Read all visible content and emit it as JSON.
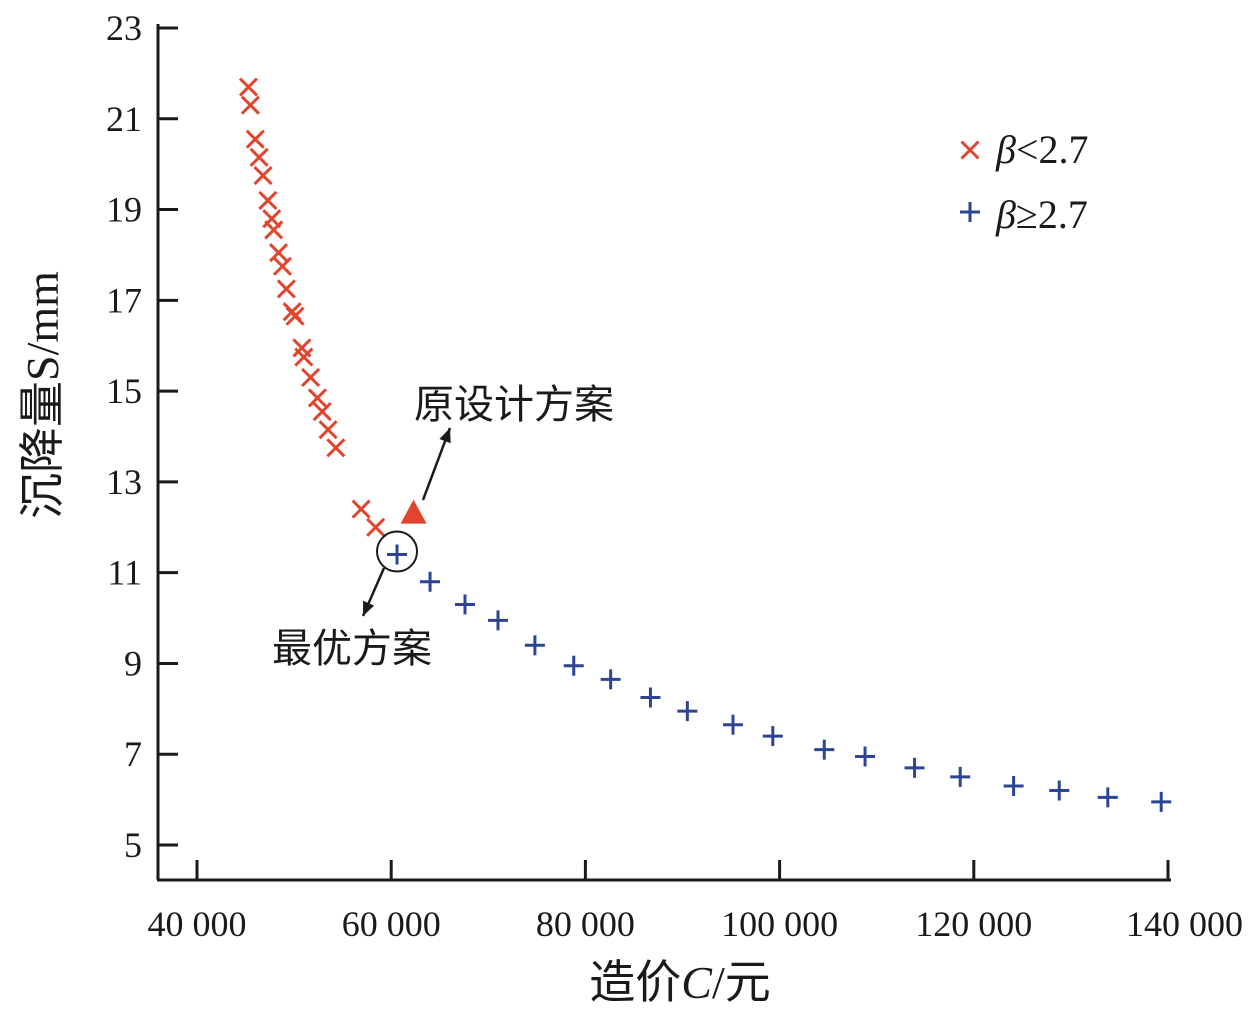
{
  "chart_data": {
    "type": "scatter",
    "xlabel": {
      "main": "造价",
      "var": "C",
      "unit": "/元"
    },
    "ylabel": {
      "main": "沉降量",
      "var": "S",
      "unit": "/mm"
    },
    "xlim": [
      40000,
      140000
    ],
    "ylim": [
      5,
      23
    ],
    "xticks": [
      40000,
      60000,
      80000,
      100000,
      120000,
      140000
    ],
    "xtick_labels": [
      "40 000",
      "60 000",
      "80 000",
      "100 000",
      "120 000",
      "140 000"
    ],
    "yticks": [
      5,
      7,
      9,
      11,
      13,
      15,
      17,
      19,
      21,
      23
    ],
    "ytick_labels": [
      "5",
      "7",
      "9",
      "11",
      "13",
      "15",
      "17",
      "19",
      "21",
      "23"
    ],
    "series": [
      {
        "name": "β<2.7",
        "legend_var": "β",
        "legend_rest": "<2.7",
        "marker": "x",
        "color": "#e2452e",
        "points": [
          [
            45300,
            21.7
          ],
          [
            45500,
            21.3
          ],
          [
            46000,
            20.55
          ],
          [
            46400,
            20.15
          ],
          [
            46800,
            19.75
          ],
          [
            47300,
            19.2
          ],
          [
            47700,
            18.8
          ],
          [
            47900,
            18.55
          ],
          [
            48400,
            18.05
          ],
          [
            48800,
            17.75
          ],
          [
            49200,
            17.25
          ],
          [
            49800,
            16.75
          ],
          [
            50100,
            16.65
          ],
          [
            50800,
            15.95
          ],
          [
            51000,
            15.75
          ],
          [
            51700,
            15.3
          ],
          [
            52400,
            14.85
          ],
          [
            52900,
            14.55
          ],
          [
            53500,
            14.15
          ],
          [
            54300,
            13.75
          ],
          [
            56900,
            12.4
          ],
          [
            58400,
            12.0
          ]
        ]
      },
      {
        "name": "β≥2.7",
        "legend_var": "β",
        "legend_rest": "≥2.7",
        "marker": "+",
        "color": "#2b4593",
        "points": [
          [
            60600,
            11.4
          ],
          [
            64000,
            10.8
          ],
          [
            67600,
            10.3
          ],
          [
            71000,
            9.95
          ],
          [
            74800,
            9.4
          ],
          [
            78800,
            8.95
          ],
          [
            82600,
            8.65
          ],
          [
            86700,
            8.25
          ],
          [
            90500,
            7.95
          ],
          [
            95200,
            7.65
          ],
          [
            99300,
            7.4
          ],
          [
            104600,
            7.1
          ],
          [
            108800,
            6.95
          ],
          [
            113900,
            6.7
          ],
          [
            118600,
            6.5
          ],
          [
            124100,
            6.3
          ],
          [
            128800,
            6.2
          ],
          [
            133800,
            6.05
          ],
          [
            139300,
            5.95
          ]
        ]
      }
    ],
    "annotations": [
      {
        "text": "原设计方案",
        "marker": "triangle",
        "x": 62300,
        "y": 12.3,
        "color": "#e2452e"
      },
      {
        "text": "最优方案",
        "marker": "circle",
        "x": 60600,
        "y": 11.4
      }
    ]
  }
}
